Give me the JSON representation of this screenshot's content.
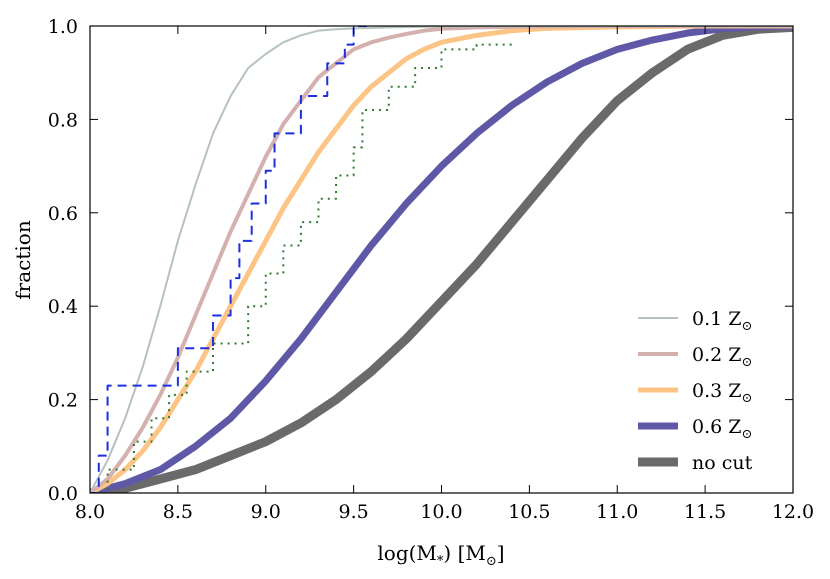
{
  "chart_data": {
    "type": "line",
    "title": "",
    "xlabel": "log(M",
    "xlabel_sub": "*",
    "xlabel_tail": ") [M",
    "xlabel_unit_sub": "⊙",
    "xlabel_close": "]",
    "ylabel": "fraction",
    "xlim": [
      8.0,
      12.0
    ],
    "ylim": [
      0.0,
      1.0
    ],
    "xticks": [
      "8.0",
      "8.5",
      "9.0",
      "9.5",
      "10.0",
      "10.5",
      "11.0",
      "11.5",
      "12.0"
    ],
    "yticks": [
      "0.0",
      "0.2",
      "0.4",
      "0.6",
      "0.8",
      "1.0"
    ],
    "grid": false,
    "legend_position": "bottom-right",
    "series": [
      {
        "name": "0.1 Z",
        "name_sub": "⊙",
        "color": "#b5c2bf",
        "width": 2,
        "x": [
          8.0,
          8.1,
          8.2,
          8.3,
          8.4,
          8.5,
          8.6,
          8.7,
          8.8,
          8.9,
          9.0,
          9.1,
          9.2,
          9.3,
          9.4,
          9.5,
          9.7,
          10.0,
          10.5,
          12.0
        ],
        "y": [
          0.0,
          0.07,
          0.16,
          0.27,
          0.4,
          0.54,
          0.66,
          0.77,
          0.85,
          0.91,
          0.94,
          0.965,
          0.98,
          0.99,
          0.993,
          0.995,
          0.997,
          0.999,
          1.0,
          1.0
        ]
      },
      {
        "name": "0.2 Z",
        "name_sub": "⊙",
        "color": "#d4b0ae",
        "width": 4,
        "x": [
          8.0,
          8.1,
          8.2,
          8.3,
          8.4,
          8.5,
          8.6,
          8.7,
          8.8,
          8.9,
          9.0,
          9.1,
          9.2,
          9.3,
          9.4,
          9.5,
          9.6,
          9.7,
          9.8,
          9.9,
          10.0,
          10.2,
          10.5,
          11.0,
          12.0
        ],
        "y": [
          0.0,
          0.03,
          0.08,
          0.14,
          0.21,
          0.29,
          0.38,
          0.47,
          0.56,
          0.64,
          0.72,
          0.79,
          0.84,
          0.89,
          0.92,
          0.95,
          0.965,
          0.975,
          0.983,
          0.99,
          0.994,
          0.997,
          0.999,
          1.0,
          1.0
        ]
      },
      {
        "name": "0.3 Z",
        "name_sub": "⊙",
        "color": "#fcc586",
        "width": 5,
        "x": [
          8.0,
          8.1,
          8.2,
          8.3,
          8.4,
          8.5,
          8.6,
          8.7,
          8.8,
          8.9,
          9.0,
          9.1,
          9.2,
          9.3,
          9.4,
          9.5,
          9.6,
          9.7,
          9.8,
          9.9,
          10.0,
          10.2,
          10.4,
          10.6,
          11.0,
          11.5,
          12.0
        ],
        "y": [
          0.0,
          0.02,
          0.05,
          0.09,
          0.14,
          0.2,
          0.26,
          0.33,
          0.4,
          0.47,
          0.54,
          0.61,
          0.67,
          0.73,
          0.78,
          0.83,
          0.87,
          0.9,
          0.93,
          0.95,
          0.965,
          0.98,
          0.99,
          0.995,
          0.998,
          1.0,
          1.0
        ]
      },
      {
        "name": "0.6 Z",
        "name_sub": "⊙",
        "color": "#5f58a7",
        "width": 7,
        "x": [
          8.0,
          8.2,
          8.4,
          8.6,
          8.8,
          9.0,
          9.2,
          9.4,
          9.6,
          9.8,
          10.0,
          10.2,
          10.4,
          10.6,
          10.8,
          11.0,
          11.2,
          11.4,
          11.6,
          11.8,
          12.0
        ],
        "y": [
          0.0,
          0.02,
          0.05,
          0.1,
          0.16,
          0.24,
          0.33,
          0.43,
          0.53,
          0.62,
          0.7,
          0.77,
          0.83,
          0.88,
          0.92,
          0.95,
          0.97,
          0.985,
          0.994,
          0.998,
          1.0
        ]
      },
      {
        "name": "no cut",
        "color": "#6a6a6a",
        "width": 9,
        "x": [
          8.0,
          8.2,
          8.4,
          8.6,
          8.8,
          9.0,
          9.2,
          9.4,
          9.6,
          9.8,
          10.0,
          10.2,
          10.4,
          10.6,
          10.8,
          11.0,
          11.2,
          11.4,
          11.6,
          11.8,
          12.0
        ],
        "y": [
          0.0,
          0.01,
          0.03,
          0.05,
          0.08,
          0.11,
          0.15,
          0.2,
          0.26,
          0.33,
          0.41,
          0.49,
          0.58,
          0.67,
          0.76,
          0.84,
          0.9,
          0.95,
          0.98,
          0.993,
          0.997
        ]
      },
      {
        "name": "",
        "color": "#1f2ee0",
        "width": 2,
        "dash": "9,6",
        "step": true,
        "x": [
          8.0,
          8.05,
          8.1,
          8.35,
          8.5,
          8.55,
          8.65,
          8.7,
          8.8,
          8.85,
          8.92,
          9.0,
          9.05,
          9.15,
          9.2,
          9.3,
          9.35,
          9.45,
          9.5,
          9.6
        ],
        "y": [
          0.0,
          0.08,
          0.23,
          0.23,
          0.31,
          0.31,
          0.31,
          0.38,
          0.46,
          0.54,
          0.62,
          0.69,
          0.77,
          0.77,
          0.85,
          0.85,
          0.92,
          0.96,
          1.0,
          1.0
        ]
      },
      {
        "name": "",
        "color": "#2f7a2f",
        "width": 2,
        "dash": "2,5",
        "step": true,
        "x": [
          8.0,
          8.1,
          8.25,
          8.35,
          8.45,
          8.55,
          8.7,
          8.9,
          9.0,
          9.1,
          9.2,
          9.3,
          9.4,
          9.5,
          9.55,
          9.7,
          9.85,
          10.0,
          10.2,
          10.4
        ],
        "y": [
          0.0,
          0.05,
          0.11,
          0.16,
          0.21,
          0.26,
          0.32,
          0.4,
          0.47,
          0.53,
          0.58,
          0.63,
          0.68,
          0.74,
          0.82,
          0.87,
          0.91,
          0.95,
          0.96,
          0.97
        ]
      }
    ]
  }
}
